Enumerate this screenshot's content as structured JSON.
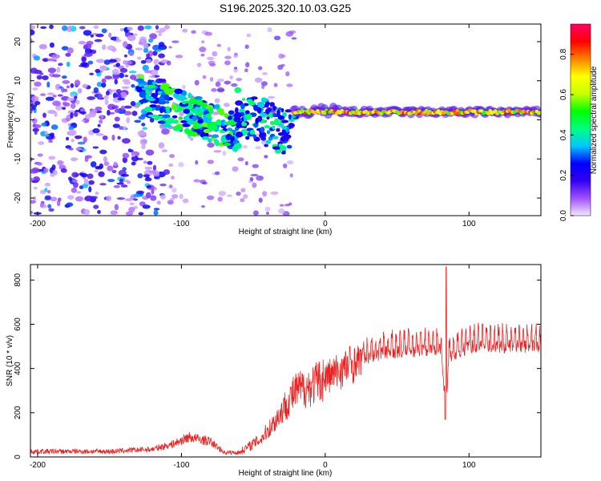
{
  "title": "S196.2025.320.10.03.G25",
  "chart_data": [
    {
      "type": "heatmap",
      "name": "spectrogram",
      "xlabel": "Height of straight line (km)",
      "ylabel": "Frequency (Hz)",
      "xlim": [
        -205,
        150
      ],
      "ylim": [
        -24.5,
        24.5
      ],
      "xticks": [
        -200,
        -100,
        0,
        100
      ],
      "yticks": [
        -20,
        -10,
        0,
        10,
        20
      ],
      "colorbar": {
        "label": "Normalized spectral amplitude",
        "range": [
          0,
          0.95
        ],
        "ticks": [
          0,
          0.2,
          0.4,
          0.6,
          0.8
        ],
        "tick_labels": [
          "0.0",
          "0.2",
          "0.4",
          "0.6",
          "0.8"
        ],
        "colors": [
          "#f2eaff",
          "#a050ff",
          "#3300ee",
          "#0000ff",
          "#00c8ff",
          "#00ff80",
          "#00ff00",
          "#c8ff00",
          "#ffff00",
          "#ff8000",
          "#ff0000",
          "#ff0066"
        ]
      },
      "features": [
        {
          "x_range": [
            -205,
            -120
          ],
          "freq_range": [
            -24,
            24
          ],
          "amplitude": "0.05-0.35 scattered"
        },
        {
          "x_range": [
            -130,
            -60
          ],
          "freq_center_start": 6,
          "freq_center_end": -3,
          "amplitude": "0.3-0.55 diagonal band"
        },
        {
          "x_range": [
            -60,
            -20
          ],
          "freq_center_start": 0,
          "freq_center_end": -8,
          "amplitude": "0.2-0.45"
        },
        {
          "x_range": [
            -20,
            150
          ],
          "freq_center": 2,
          "amplitude": "0.6-0.9 narrow line"
        }
      ]
    },
    {
      "type": "line",
      "name": "snr",
      "xlabel": "Height of straight line (km)",
      "ylabel": "SNR (10 * v/v)",
      "xlim": [
        -205,
        150
      ],
      "ylim": [
        0,
        870
      ],
      "xticks": [
        -200,
        -100,
        0,
        100
      ],
      "yticks": [
        0,
        200,
        400,
        600,
        800
      ],
      "color": "#ee2020",
      "series_profile": {
        "x": [
          -205,
          -150,
          -120,
          -105,
          -95,
          -80,
          -70,
          -60,
          -45,
          -35,
          -25,
          -20,
          -10,
          0,
          10,
          20,
          30,
          40,
          60,
          80,
          84,
          86,
          100,
          120,
          150
        ],
        "y": [
          25,
          25,
          35,
          60,
          90,
          70,
          20,
          20,
          80,
          160,
          260,
          300,
          320,
          360,
          390,
          430,
          450,
          470,
          480,
          490,
          240,
          450,
          500,
          500,
          500
        ]
      },
      "notes": "dense oscillating trace; spike ~860 at x=84, dip ~170 at x=84"
    }
  ]
}
